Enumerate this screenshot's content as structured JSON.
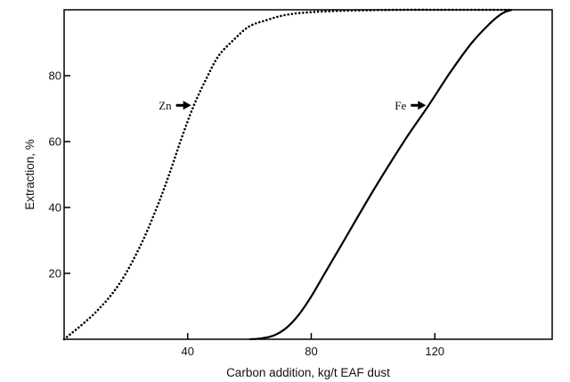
{
  "chart_data": {
    "type": "line",
    "title": "",
    "xlabel": "Carbon addition, kg/t EAF dust",
    "ylabel": "Extraction, %",
    "xlim": [
      0,
      158
    ],
    "ylim": [
      0,
      100
    ],
    "xticks": [
      40,
      80,
      120
    ],
    "yticks": [
      20,
      40,
      60,
      80
    ],
    "grid": false,
    "legend": "none",
    "series": [
      {
        "name": "Zn",
        "style": "dotted",
        "label_at": {
          "x": 42,
          "y": 71
        },
        "x": [
          0,
          10,
          18,
          25,
          30,
          34,
          38,
          42,
          46,
          50,
          55,
          60,
          66,
          72,
          80,
          90,
          100,
          110,
          120,
          130,
          145
        ],
        "y": [
          0,
          8,
          17,
          29,
          40,
          50,
          61,
          71,
          79,
          86,
          91,
          95,
          97,
          98.5,
          99.3,
          99.7,
          99.9,
          100,
          100,
          100,
          100
        ]
      },
      {
        "name": "Fe",
        "style": "solid",
        "label_at": {
          "x": 118,
          "y": 71
        },
        "x": [
          60,
          64,
          68,
          72,
          76,
          80,
          85,
          90,
          100,
          110,
          118,
          125,
          132,
          138,
          142,
          145
        ],
        "y": [
          0,
          0.3,
          1.2,
          3.5,
          7.5,
          13,
          21,
          29,
          45,
          60,
          71,
          81,
          90,
          96,
          99,
          100
        ]
      }
    ]
  }
}
